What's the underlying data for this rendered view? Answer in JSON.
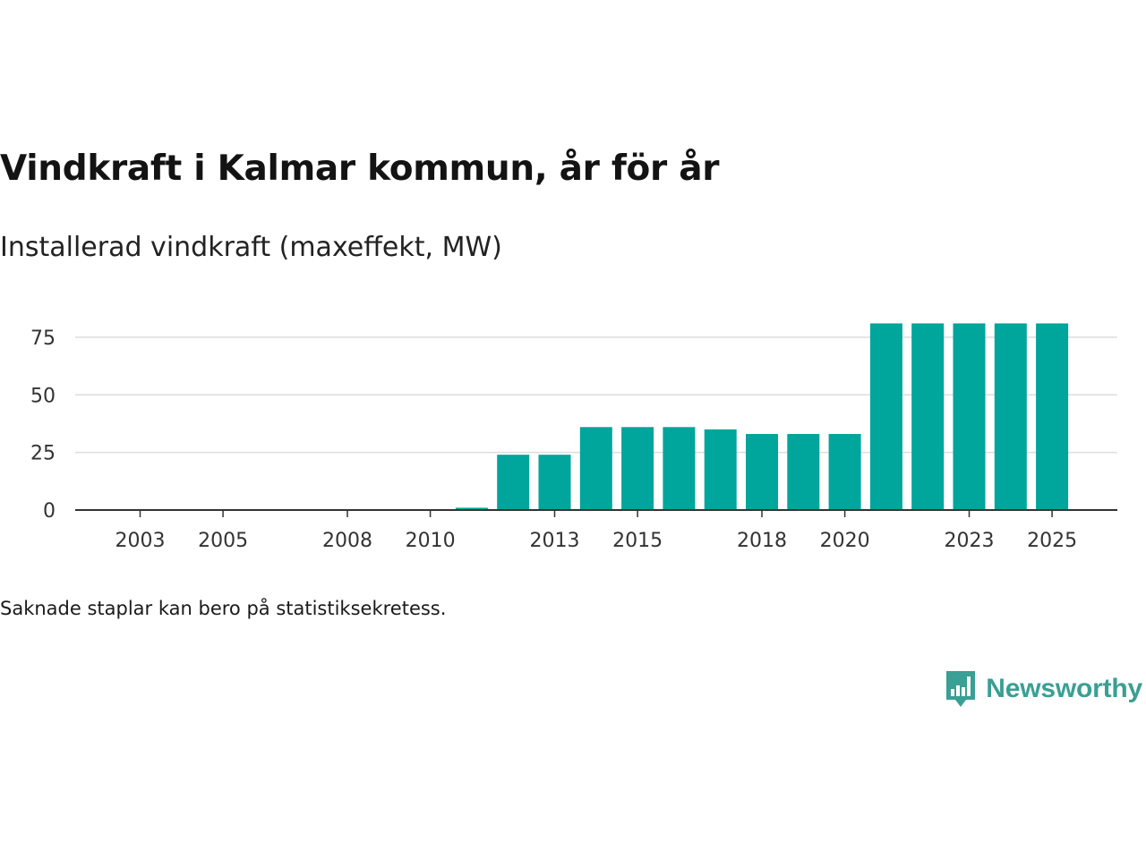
{
  "title": "Vindkraft i Kalmar kommun, år för år",
  "subtitle": "Installerad vindkraft (maxeffekt, MW)",
  "footnote": "Saknade staplar kan bero på statistiksekretess.",
  "brand": {
    "name": "Newsworthy",
    "icon": "newsworthy-logo-icon",
    "color": "#3a9f94"
  },
  "colors": {
    "bar": "#00a59b",
    "grid": "#dddddd",
    "axis": "#333333"
  },
  "chart_data": {
    "type": "bar",
    "title": "Vindkraft i Kalmar kommun, år för år",
    "ylabel": "Installerad vindkraft (maxeffekt, MW)",
    "xlabel": "",
    "ylim": [
      0,
      85
    ],
    "yticks": [
      0,
      25,
      50,
      75
    ],
    "grid": true,
    "categories": [
      2003,
      2004,
      2005,
      2006,
      2007,
      2008,
      2009,
      2010,
      2011,
      2012,
      2013,
      2014,
      2015,
      2016,
      2017,
      2018,
      2019,
      2020,
      2021,
      2022,
      2023,
      2024,
      2025
    ],
    "xtick_labels": [
      "2003",
      "2005",
      "2008",
      "2010",
      "2013",
      "2015",
      "2018",
      "2020",
      "2023",
      "2025"
    ],
    "values": [
      0,
      0,
      0,
      0,
      0,
      0,
      0,
      0,
      1,
      24,
      24,
      36,
      36,
      36,
      35,
      33,
      33,
      33,
      81,
      81,
      81,
      81,
      81
    ]
  }
}
